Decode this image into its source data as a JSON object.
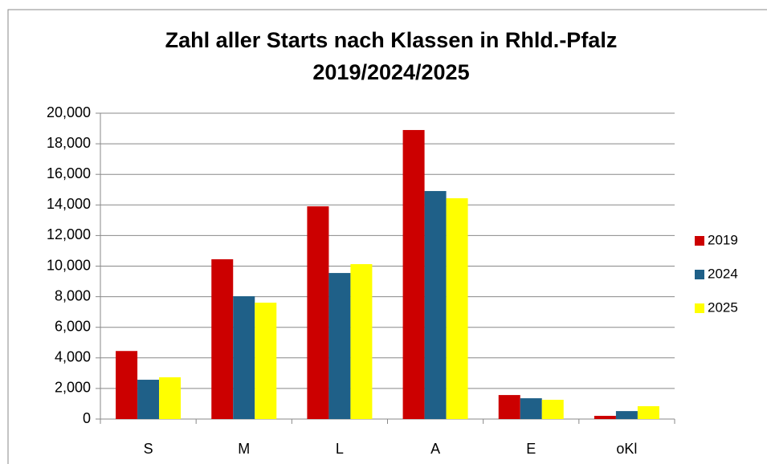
{
  "chart_data": {
    "type": "bar",
    "title": [
      "Zahl aller Starts nach Klassen in Rhld.-Pfalz",
      "2019/2024/2025"
    ],
    "categories": [
      "S",
      "M",
      "L",
      "A",
      "E",
      "oKl"
    ],
    "series": [
      {
        "name": "2019",
        "color": "#cc0000",
        "values": [
          4450,
          10450,
          13910,
          18900,
          1570,
          210
        ]
      },
      {
        "name": "2024",
        "color": "#1f6088",
        "values": [
          2570,
          8030,
          9550,
          14910,
          1360,
          520
        ]
      },
      {
        "name": "2025",
        "color": "#ffff00",
        "values": [
          2730,
          7610,
          10130,
          14440,
          1260,
          840
        ]
      }
    ],
    "ylim": [
      0,
      20000
    ],
    "yticks": [
      0,
      {
        "value": 2000,
        "label": "2,000"
      },
      {
        "value": 4000,
        "label": "4,000"
      },
      {
        "value": 6000,
        "label": "6,000"
      },
      {
        "value": 8000,
        "label": "8,000"
      },
      {
        "value": 10000,
        "label": "10,000"
      },
      {
        "value": 12000,
        "label": "12,000"
      },
      {
        "value": 14000,
        "label": "14,000"
      },
      {
        "value": 16000,
        "label": "16,000"
      },
      {
        "value": 18000,
        "label": "18,000"
      },
      {
        "value": 20000,
        "label": "20,000"
      }
    ],
    "grid": true,
    "legend": "right"
  }
}
